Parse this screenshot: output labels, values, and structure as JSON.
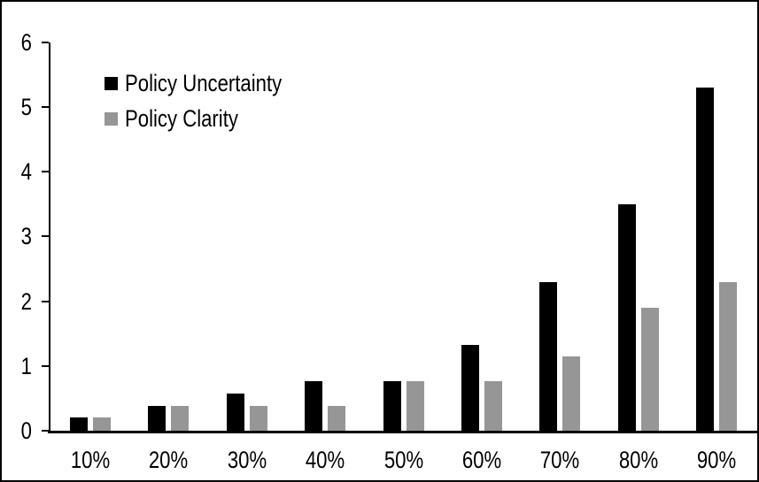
{
  "figure": {
    "background_color": "#ffffff",
    "frame_color": "#000000"
  },
  "chart_data": {
    "type": "bar",
    "title": "",
    "xlabel": "",
    "ylabel": "",
    "categories": [
      "10%",
      "20%",
      "30%",
      "40%",
      "50%",
      "60%",
      "70%",
      "80%",
      "90%"
    ],
    "series": [
      {
        "name": "Policy Uncertainty",
        "color": "#000000",
        "values": [
          0.2,
          0.38,
          0.57,
          0.77,
          0.77,
          1.33,
          2.3,
          3.5,
          5.3
        ]
      },
      {
        "name": "Policy Clarity",
        "color": "#969696",
        "values": [
          0.2,
          0.38,
          0.38,
          0.38,
          0.77,
          0.77,
          1.15,
          1.9,
          2.3
        ]
      }
    ],
    "ylim": [
      0,
      6
    ],
    "yticks": [
      0,
      1,
      2,
      3,
      4,
      5,
      6
    ],
    "grid": false,
    "legend_position": "upper-left-inside",
    "axis_color": "#000000",
    "text_color": "#000000"
  }
}
